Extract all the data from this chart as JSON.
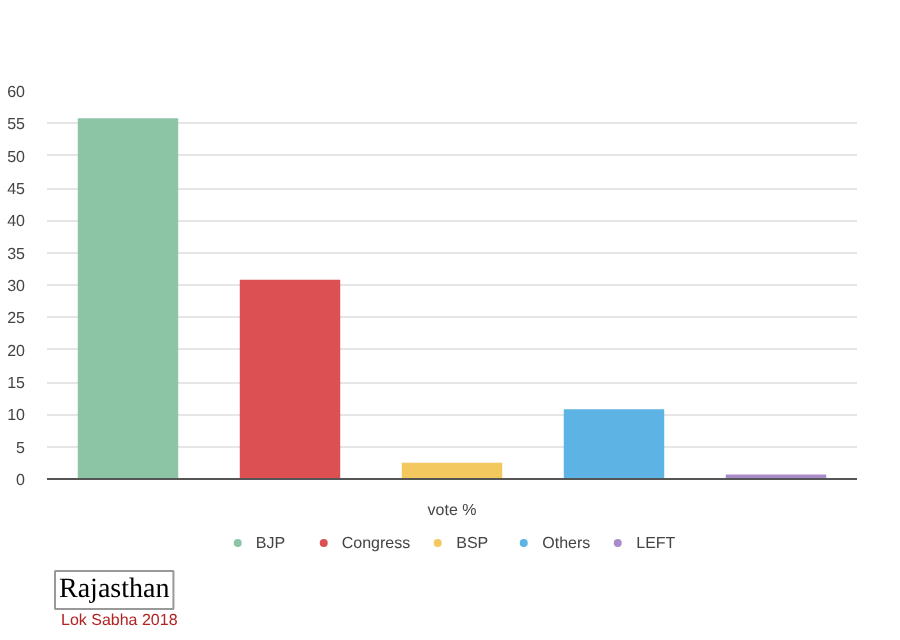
{
  "chart_data": {
    "type": "bar",
    "title": "Rajasthan",
    "subtitle": "Lok Sabha 2018",
    "categories": [
      "vote %"
    ],
    "series": [
      {
        "name": "BJP",
        "color": "#8cc4a6",
        "values": [
          55.8
        ]
      },
      {
        "name": "Congress",
        "color": "#dc5052",
        "values": [
          30.8
        ]
      },
      {
        "name": "BSP",
        "color": "#f2c85f",
        "values": [
          2.5
        ]
      },
      {
        "name": "Others",
        "color": "#5db4e4",
        "values": [
          10.8
        ]
      },
      {
        "name": "LEFT",
        "color": "#a98cc9",
        "values": [
          0.7
        ]
      }
    ],
    "ylim": [
      0,
      60
    ],
    "yticks": [
      0,
      5,
      10,
      15,
      20,
      25,
      30,
      35,
      40,
      45,
      50,
      55,
      60
    ],
    "grid": "y",
    "legend": "bottom"
  }
}
